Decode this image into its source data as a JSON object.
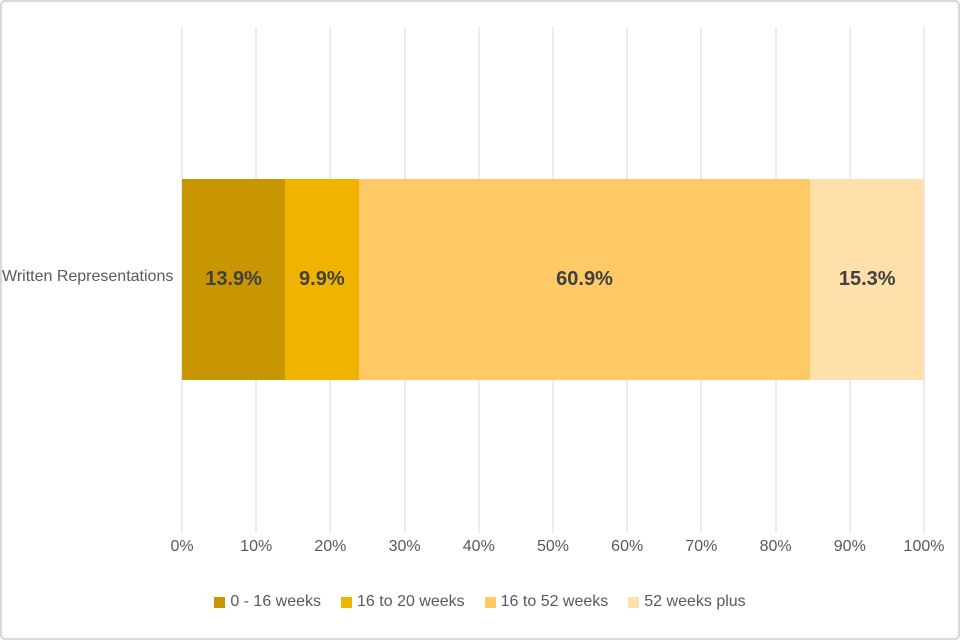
{
  "chart_data": {
    "type": "bar",
    "variant": "horizontal-stacked",
    "title": "",
    "categories": [
      "Written Representations"
    ],
    "series": [
      {
        "name": "0 - 16 weeks",
        "values": [
          13.9
        ],
        "label": "13.9%",
        "color": "#C89600"
      },
      {
        "name": "16 to 20 weeks",
        "values": [
          9.9
        ],
        "label": "9.9%",
        "color": "#F0B400"
      },
      {
        "name": "16 to 52 weeks",
        "values": [
          60.9
        ],
        "label": "60.9%",
        "color": "#FFC966"
      },
      {
        "name": "52 weeks plus",
        "values": [
          15.3
        ],
        "label": "15.3%",
        "color": "#FFDFAA"
      }
    ],
    "xlim": [
      0,
      100
    ],
    "x_ticks": [
      "0%",
      "10%",
      "20%",
      "30%",
      "40%",
      "50%",
      "60%",
      "70%",
      "80%",
      "90%",
      "100%"
    ],
    "grid": "vertical",
    "legend_position": "bottom",
    "colors": {
      "gridline": "#D9D9D9",
      "axis_text": "#595959",
      "data_label": "#404040",
      "frame_border": "#D8D8D8",
      "background": "#FFFFFF"
    }
  }
}
